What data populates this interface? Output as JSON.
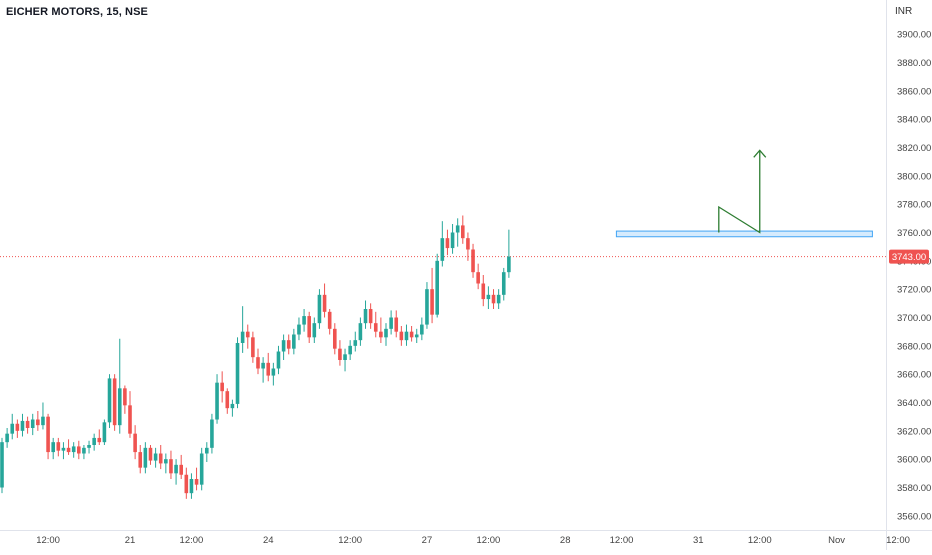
{
  "header": {
    "symbol_title": "EICHER MOTORS, 15, NSE",
    "currency": "INR"
  },
  "colors": {
    "up": "#26a69a",
    "down": "#ef5350",
    "last_price_line": "#ef5350",
    "zone_fill": "#bbdefb",
    "zone_stroke": "#42a5f5",
    "arrow": "#2e7d32",
    "axis_text": "#444444"
  },
  "chart_data": {
    "type": "candlestick",
    "ylim": [
      3550,
      3910
    ],
    "y_ticks": [
      3560,
      3580,
      3600,
      3620,
      3640,
      3660,
      3680,
      3700,
      3720,
      3740,
      3760,
      3780,
      3800,
      3820,
      3840,
      3860,
      3880,
      3900
    ],
    "y_tick_labels": [
      "3560.00",
      "3580.00",
      "3600.00",
      "3620.00",
      "3640.00",
      "3660.00",
      "3680.00",
      "3700.00",
      "3720.00",
      "3740.00",
      "3760.00",
      "3780.00",
      "3800.00",
      "3820.00",
      "3840.00",
      "3860.00",
      "3880.00",
      "3900.00"
    ],
    "x_ticks": [
      {
        "label": "12:00",
        "bar": 9
      },
      {
        "label": "21",
        "bar": 25
      },
      {
        "label": "12:00",
        "bar": 37
      },
      {
        "label": "24",
        "bar": 52
      },
      {
        "label": "12:00",
        "bar": 68
      },
      {
        "label": "27",
        "bar": 83
      },
      {
        "label": "12:00",
        "bar": 95
      },
      {
        "label": "28",
        "bar": 110
      },
      {
        "label": "12:00",
        "bar": 121
      },
      {
        "label": "31",
        "bar": 136
      },
      {
        "label": "12:00",
        "bar": 148
      },
      {
        "label": "Nov",
        "bar": 163
      },
      {
        "label": "12:00",
        "bar": 175
      }
    ],
    "last_price": 3743,
    "last_price_label": "3743.00",
    "candles": [
      [
        3580,
        3615,
        3576,
        3612
      ],
      [
        3612,
        3622,
        3608,
        3618
      ],
      [
        3618,
        3632,
        3614,
        3625
      ],
      [
        3625,
        3628,
        3615,
        3620
      ],
      [
        3620,
        3632,
        3616,
        3627
      ],
      [
        3627,
        3630,
        3618,
        3622
      ],
      [
        3622,
        3632,
        3617,
        3628
      ],
      [
        3628,
        3634,
        3620,
        3624
      ],
      [
        3624,
        3640,
        3621,
        3630
      ],
      [
        3630,
        3632,
        3600,
        3605
      ],
      [
        3605,
        3615,
        3600,
        3612
      ],
      [
        3612,
        3615,
        3602,
        3606
      ],
      [
        3606,
        3612,
        3600,
        3608
      ],
      [
        3608,
        3614,
        3603,
        3605
      ],
      [
        3605,
        3612,
        3601,
        3609
      ],
      [
        3609,
        3613,
        3600,
        3604
      ],
      [
        3604,
        3610,
        3600,
        3608
      ],
      [
        3608,
        3613,
        3604,
        3610
      ],
      [
        3610,
        3618,
        3606,
        3615
      ],
      [
        3615,
        3621,
        3610,
        3612
      ],
      [
        3612,
        3628,
        3610,
        3626
      ],
      [
        3626,
        3660,
        3622,
        3657
      ],
      [
        3657,
        3660,
        3620,
        3624
      ],
      [
        3624,
        3685,
        3618,
        3650
      ],
      [
        3650,
        3652,
        3632,
        3638
      ],
      [
        3638,
        3648,
        3615,
        3618
      ],
      [
        3618,
        3624,
        3600,
        3605
      ],
      [
        3605,
        3610,
        3590,
        3594
      ],
      [
        3594,
        3612,
        3590,
        3608
      ],
      [
        3608,
        3610,
        3596,
        3599
      ],
      [
        3599,
        3608,
        3594,
        3604
      ],
      [
        3604,
        3610,
        3593,
        3597
      ],
      [
        3597,
        3604,
        3590,
        3600
      ],
      [
        3600,
        3606,
        3586,
        3590
      ],
      [
        3590,
        3600,
        3582,
        3596
      ],
      [
        3596,
        3603,
        3586,
        3589
      ],
      [
        3589,
        3594,
        3572,
        3576
      ],
      [
        3576,
        3590,
        3572,
        3586
      ],
      [
        3586,
        3594,
        3578,
        3582
      ],
      [
        3582,
        3608,
        3578,
        3604
      ],
      [
        3604,
        3612,
        3598,
        3608
      ],
      [
        3608,
        3632,
        3604,
        3628
      ],
      [
        3628,
        3660,
        3625,
        3654
      ],
      [
        3654,
        3662,
        3640,
        3648
      ],
      [
        3648,
        3650,
        3632,
        3636
      ],
      [
        3636,
        3642,
        3630,
        3639
      ],
      [
        3639,
        3686,
        3636,
        3682
      ],
      [
        3682,
        3708,
        3675,
        3690
      ],
      [
        3690,
        3695,
        3678,
        3686
      ],
      [
        3686,
        3690,
        3668,
        3672
      ],
      [
        3672,
        3678,
        3660,
        3664
      ],
      [
        3664,
        3672,
        3654,
        3668
      ],
      [
        3668,
        3675,
        3655,
        3659
      ],
      [
        3659,
        3668,
        3652,
        3664
      ],
      [
        3664,
        3680,
        3660,
        3676
      ],
      [
        3676,
        3688,
        3670,
        3684
      ],
      [
        3684,
        3688,
        3674,
        3678
      ],
      [
        3678,
        3692,
        3674,
        3688
      ],
      [
        3688,
        3700,
        3684,
        3695
      ],
      [
        3695,
        3706,
        3690,
        3701
      ],
      [
        3701,
        3704,
        3682,
        3686
      ],
      [
        3686,
        3700,
        3682,
        3696
      ],
      [
        3696,
        3720,
        3692,
        3716
      ],
      [
        3716,
        3724,
        3700,
        3704
      ],
      [
        3704,
        3706,
        3688,
        3692
      ],
      [
        3692,
        3696,
        3674,
        3678
      ],
      [
        3678,
        3684,
        3666,
        3670
      ],
      [
        3670,
        3678,
        3662,
        3674
      ],
      [
        3674,
        3684,
        3670,
        3680
      ],
      [
        3680,
        3690,
        3676,
        3684
      ],
      [
        3684,
        3700,
        3680,
        3696
      ],
      [
        3696,
        3712,
        3692,
        3706
      ],
      [
        3706,
        3710,
        3692,
        3696
      ],
      [
        3696,
        3704,
        3686,
        3690
      ],
      [
        3690,
        3700,
        3682,
        3686
      ],
      [
        3686,
        3696,
        3680,
        3692
      ],
      [
        3692,
        3705,
        3688,
        3700
      ],
      [
        3700,
        3705,
        3686,
        3690
      ],
      [
        3690,
        3694,
        3680,
        3684
      ],
      [
        3684,
        3695,
        3680,
        3690
      ],
      [
        3690,
        3694,
        3683,
        3686
      ],
      [
        3686,
        3692,
        3682,
        3688
      ],
      [
        3688,
        3700,
        3684,
        3695
      ],
      [
        3695,
        3725,
        3692,
        3720
      ],
      [
        3720,
        3735,
        3696,
        3702
      ],
      [
        3702,
        3745,
        3700,
        3740
      ],
      [
        3740,
        3768,
        3736,
        3756
      ],
      [
        3756,
        3762,
        3744,
        3749
      ],
      [
        3749,
        3766,
        3745,
        3760
      ],
      [
        3760,
        3770,
        3750,
        3765
      ],
      [
        3765,
        3772,
        3752,
        3756
      ],
      [
        3756,
        3760,
        3740,
        3748
      ],
      [
        3748,
        3752,
        3728,
        3732
      ],
      [
        3732,
        3738,
        3720,
        3724
      ],
      [
        3724,
        3730,
        3708,
        3713
      ],
      [
        3713,
        3722,
        3706,
        3716
      ],
      [
        3716,
        3720,
        3706,
        3710
      ],
      [
        3710,
        3720,
        3706,
        3716
      ],
      [
        3716,
        3735,
        3712,
        3732
      ],
      [
        3732,
        3762,
        3728,
        3743
      ]
    ],
    "resistance_zone": {
      "from_bar": 120,
      "to_bar": 170,
      "low": 3757,
      "high": 3761
    },
    "projection_arrow": [
      [
        140,
        3760
      ],
      [
        140,
        3778
      ],
      [
        148,
        3760
      ],
      [
        148,
        3818
      ]
    ]
  }
}
